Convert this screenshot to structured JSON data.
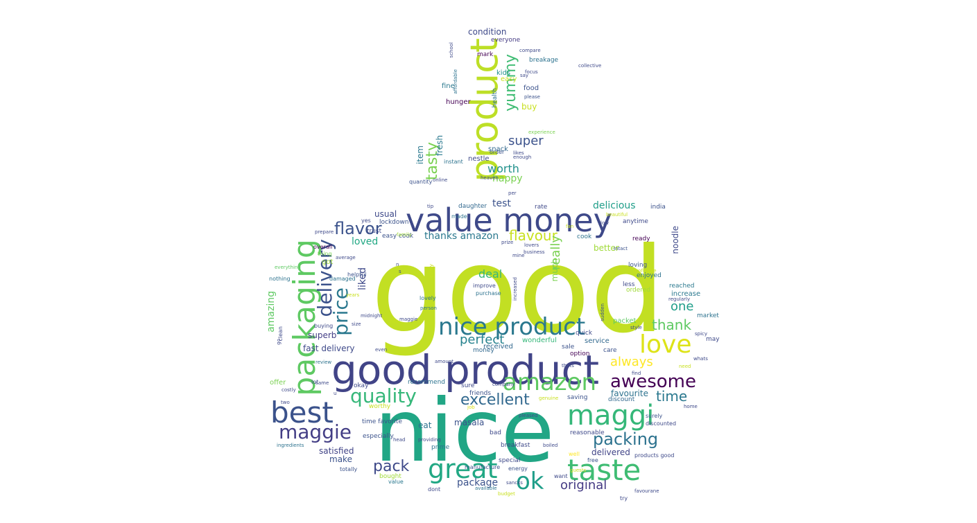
{
  "words": [
    {
      "text": "good",
      "color": "#c2df23"
    },
    {
      "text": "nice",
      "color": "#21a685"
    },
    {
      "text": "value money",
      "color": "#3e4989"
    },
    {
      "text": "good product",
      "color": "#414487"
    },
    {
      "text": "product",
      "color": "#bddf26"
    },
    {
      "text": "taste",
      "color": "#3fbc73"
    },
    {
      "text": "packaging",
      "color": "#5ec962"
    },
    {
      "text": "nice product",
      "color": "#2a788e"
    },
    {
      "text": "best",
      "color": "#3b528b"
    },
    {
      "text": "maggi",
      "color": "#35b779"
    },
    {
      "text": "amazon",
      "color": "#5ec962"
    },
    {
      "text": "love",
      "color": "#dde318"
    },
    {
      "text": "great",
      "color": "#22a884"
    },
    {
      "text": "ok",
      "color": "#1f9e89"
    },
    {
      "text": "maggie",
      "color": "#433e85"
    },
    {
      "text": "quality",
      "color": "#35b779"
    },
    {
      "text": "delivery",
      "color": "#3b528b"
    },
    {
      "text": "price",
      "color": "#2a788e"
    },
    {
      "text": "awesome",
      "color": "#440154"
    },
    {
      "text": "excellent",
      "color": "#31688e"
    },
    {
      "text": "flavor",
      "color": "#3b528b"
    },
    {
      "text": "flavour",
      "color": "#c8e020"
    },
    {
      "text": "yummy",
      "color": "#3fbc73"
    },
    {
      "text": "tasty",
      "color": "#7ad151"
    },
    {
      "text": "packing",
      "color": "#2c728e"
    },
    {
      "text": "pack",
      "color": "#3e4989"
    },
    {
      "text": "thank",
      "color": "#5ec962"
    },
    {
      "text": "time",
      "color": "#2a788e"
    },
    {
      "text": "perfect",
      "color": "#26828e"
    },
    {
      "text": "really",
      "color": "#7ad151"
    },
    {
      "text": "always",
      "color": "#fde725"
    },
    {
      "text": "super",
      "color": "#3b528b"
    },
    {
      "text": "worth",
      "color": "#21918c"
    },
    {
      "text": "original",
      "color": "#443a83"
    },
    {
      "text": "one",
      "color": "#1f9e89"
    },
    {
      "text": "deal",
      "color": "#35b779"
    },
    {
      "text": "thanks amazon",
      "color": "#2a788e"
    },
    {
      "text": "happy",
      "color": "#7ad151"
    },
    {
      "text": "delicious",
      "color": "#1f9e89"
    },
    {
      "text": "amazing",
      "color": "#5ec962"
    },
    {
      "text": "package",
      "color": "#3b528b"
    },
    {
      "text": "delivered",
      "color": "#414487"
    },
    {
      "text": "satisfied",
      "color": "#414487"
    },
    {
      "text": "condition",
      "color": "#3e4989"
    },
    {
      "text": "test",
      "color": "#3b528b"
    },
    {
      "text": "buy",
      "color": "#c8e020"
    },
    {
      "text": "loved",
      "color": "#22a884"
    },
    {
      "text": "liked",
      "color": "#3e4989"
    },
    {
      "text": "superb",
      "color": "#433e85"
    },
    {
      "text": "fast delivery",
      "color": "#3e4989"
    },
    {
      "text": "favourite",
      "color": "#2c728e"
    },
    {
      "text": "item",
      "color": "#2a788e"
    },
    {
      "text": "fresh",
      "color": "#2a788e"
    },
    {
      "text": "better",
      "color": "#a0da39"
    },
    {
      "text": "much",
      "color": "#7ad151"
    },
    {
      "text": "usual",
      "color": "#3e4989"
    },
    {
      "text": "masala",
      "color": "#3b528b"
    },
    {
      "text": "eat",
      "color": "#2c728e"
    },
    {
      "text": "make",
      "color": "#3b528b"
    },
    {
      "text": "noodle",
      "color": "#3e4989"
    },
    {
      "text": "packet",
      "color": "#5ec962"
    },
    {
      "text": "service",
      "color": "#31688e"
    },
    {
      "text": "wonderful",
      "color": "#35b779"
    },
    {
      "text": "received",
      "color": "#31688e"
    },
    {
      "text": "offer",
      "color": "#7ad151"
    },
    {
      "text": "got",
      "color": "#a0da39"
    },
    {
      "text": "hunger",
      "color": "#440154"
    },
    {
      "text": "fine",
      "color": "#2a788e"
    },
    {
      "text": "kids",
      "color": "#21918c"
    },
    {
      "text": "easy",
      "color": "#c8e020"
    },
    {
      "text": "food",
      "color": "#3b528b"
    },
    {
      "text": "health",
      "color": "#2c728e"
    },
    {
      "text": "snack",
      "color": "#31688e"
    },
    {
      "text": "nestle",
      "color": "#3e4989"
    },
    {
      "text": "everyone",
      "color": "#443a83"
    },
    {
      "text": "breakage",
      "color": "#2c728e"
    },
    {
      "text": "mark",
      "color": "#440154"
    },
    {
      "text": "trust",
      "color": "#3e4989"
    },
    {
      "text": "lockdown",
      "color": "#3b528b"
    },
    {
      "text": "easy cook",
      "color": "#3b528b"
    },
    {
      "text": "daughter",
      "color": "#31688e"
    },
    {
      "text": "rate",
      "color": "#3e4989"
    },
    {
      "text": "india",
      "color": "#3b528b"
    },
    {
      "text": "anytime",
      "color": "#3e4989"
    },
    {
      "text": "cook",
      "color": "#2c728e"
    },
    {
      "text": "ready",
      "color": "#440154"
    },
    {
      "text": "loving",
      "color": "#3b528b"
    },
    {
      "text": "enjoyed",
      "color": "#2c728e"
    },
    {
      "text": "less",
      "color": "#3e4989"
    },
    {
      "text": "ordered",
      "color": "#a0da39"
    },
    {
      "text": "reached",
      "color": "#2a788e"
    },
    {
      "text": "increase",
      "color": "#2a788e"
    },
    {
      "text": "market",
      "color": "#2c728e"
    },
    {
      "text": "may",
      "color": "#3e4989"
    },
    {
      "text": "quick",
      "color": "#3e4989"
    },
    {
      "text": "care",
      "color": "#3b528b"
    },
    {
      "text": "option",
      "color": "#440154"
    },
    {
      "text": "sale",
      "color": "#3b528b"
    },
    {
      "text": "money",
      "color": "#31688e"
    },
    {
      "text": "sure",
      "color": "#3e4989"
    },
    {
      "text": "okay",
      "color": "#3e4989"
    },
    {
      "text": "recommend",
      "color": "#2c728e"
    },
    {
      "text": "friends",
      "color": "#3b528b"
    },
    {
      "text": "saving",
      "color": "#3b528b"
    },
    {
      "text": "discount",
      "color": "#31688e"
    },
    {
      "text": "worthy",
      "color": "#c8e020"
    },
    {
      "text": "time favorite",
      "color": "#3b528b"
    },
    {
      "text": "especially",
      "color": "#3b528b"
    },
    {
      "text": "bad",
      "color": "#3e4989"
    },
    {
      "text": "reasonable",
      "color": "#3e4989"
    },
    {
      "text": "breakfast",
      "color": "#3e4989"
    },
    {
      "text": "prime",
      "color": "#2c728e"
    },
    {
      "text": "special",
      "color": "#3e4989"
    },
    {
      "text": "well",
      "color": "#fde725"
    },
    {
      "text": "free",
      "color": "#3b528b"
    },
    {
      "text": "products good",
      "color": "#3e4989"
    },
    {
      "text": "totally",
      "color": "#3b528b"
    },
    {
      "text": "bought",
      "color": "#a0da39"
    },
    {
      "text": "value",
      "color": "#2a788e"
    },
    {
      "text": "manufacture",
      "color": "#3b528b"
    },
    {
      "text": "dont",
      "color": "#3e4989"
    },
    {
      "text": "want",
      "color": "#3e4989"
    },
    {
      "text": "energy",
      "color": "#3b528b"
    },
    {
      "text": "try",
      "color": "#3e4989"
    },
    {
      "text": "surely",
      "color": "#3b528b"
    },
    {
      "text": "discounted",
      "color": "#3e4989"
    },
    {
      "text": "lovely",
      "color": "#2c728e"
    },
    {
      "text": "improve",
      "color": "#3e4989"
    },
    {
      "text": "purchase",
      "color": "#2c728e"
    },
    {
      "text": "nothing",
      "color": "#2c728e"
    },
    {
      "text": "clean",
      "color": "#3e4989"
    },
    {
      "text": "buying",
      "color": "#3e4989"
    },
    {
      "text": "damaged",
      "color": "#2c728e"
    },
    {
      "text": "helpful",
      "color": "#3b528b"
    },
    {
      "text": "overall",
      "color": "#440154"
    },
    {
      "text": "thing",
      "color": "#7ad151"
    },
    {
      "text": "quantity",
      "color": "#3b528b"
    },
    {
      "text": "instant",
      "color": "#2c728e"
    },
    {
      "text": "order",
      "color": "#3b528b"
    },
    {
      "text": "say",
      "color": "#3e4989"
    },
    {
      "text": "please",
      "color": "#3b528b"
    },
    {
      "text": "experience",
      "color": "#7ad151"
    },
    {
      "text": "made",
      "color": "#2c728e"
    },
    {
      "text": "online",
      "color": "#3e4989"
    },
    {
      "text": "yes",
      "color": "#3e4989"
    },
    {
      "text": "per",
      "color": "#3e4989"
    },
    {
      "text": "fan",
      "color": "#c8e020"
    },
    {
      "text": "intact",
      "color": "#3b528b"
    },
    {
      "text": "low",
      "color": "#3e4989"
    },
    {
      "text": "lovers",
      "color": "#3e4989"
    },
    {
      "text": "prize",
      "color": "#3e4989"
    },
    {
      "text": "sudden",
      "color": "#3b528b"
    },
    {
      "text": "midnight",
      "color": "#3e4989"
    },
    {
      "text": "size",
      "color": "#3e4989"
    },
    {
      "text": "lot",
      "color": "#3e4989"
    },
    {
      "text": "costly",
      "color": "#3e4989"
    },
    {
      "text": "go",
      "color": "#3e4989"
    },
    {
      "text": "review",
      "color": "#2c728e"
    },
    {
      "text": "person",
      "color": "#2c728e"
    },
    {
      "text": "amount",
      "color": "#3e4989"
    },
    {
      "text": "maggie",
      "color": "#3e4989"
    },
    {
      "text": "came",
      "color": "#3e4989"
    },
    {
      "text": "even",
      "color": "#3e4989"
    },
    {
      "text": "job",
      "color": "#dde318"
    },
    {
      "text": "thats",
      "color": "#3e4989"
    },
    {
      "text": "find",
      "color": "#3e4989"
    },
    {
      "text": "need",
      "color": "#c8e020"
    },
    {
      "text": "whats",
      "color": "#3e4989"
    },
    {
      "text": "home",
      "color": "#3e4989"
    },
    {
      "text": "genuine",
      "color": "#c8e020"
    },
    {
      "text": "boiled",
      "color": "#3e4989"
    },
    {
      "text": "school",
      "color": "#3e4989"
    },
    {
      "text": "affordable",
      "color": "#2c728e"
    },
    {
      "text": "increased",
      "color": "#3e4989"
    },
    {
      "text": "every",
      "color": "#c8e020"
    },
    {
      "text": "family",
      "color": "#a0da39"
    },
    {
      "text": "available",
      "color": "#2c728e"
    },
    {
      "text": "everything",
      "color": "#5ec962"
    },
    {
      "text": "u",
      "color": "#3e4989"
    },
    {
      "text": "n",
      "color": "#3e4989"
    },
    {
      "text": "s",
      "color": "#3e4989"
    },
    {
      "text": "ingredients",
      "color": "#2c728e"
    },
    {
      "text": "providing",
      "color": "#3e4989"
    },
    {
      "text": "compare",
      "color": "#3e4989"
    },
    {
      "text": "focus",
      "color": "#3e4989"
    },
    {
      "text": "collective",
      "color": "#3e4989"
    },
    {
      "text": "beautiful",
      "color": "#c8e020"
    },
    {
      "text": "spicy",
      "color": "#3e4989"
    },
    {
      "text": "mine",
      "color": "#3e4989"
    },
    {
      "text": "business",
      "color": "#3e4989"
    },
    {
      "text": "profitable",
      "color": "#c8e020"
    },
    {
      "text": "heaven",
      "color": "#3e4989"
    },
    {
      "text": "tip",
      "color": "#3e4989"
    },
    {
      "text": "prepare",
      "color": "#3e4989"
    },
    {
      "text": "average",
      "color": "#3e4989"
    },
    {
      "text": "head",
      "color": "#3e4989"
    },
    {
      "text": "pleased",
      "color": "#3e4989"
    },
    {
      "text": "company",
      "color": "#3e4989"
    },
    {
      "text": "guests",
      "color": "#c8e020"
    },
    {
      "text": "sancks",
      "color": "#3e4989"
    },
    {
      "text": "style",
      "color": "#3e4989"
    },
    {
      "text": "budget",
      "color": "#c8e020"
    },
    {
      "text": "favourane",
      "color": "#3e4989"
    },
    {
      "text": "regularly",
      "color": "#3e4989"
    },
    {
      "text": "enough",
      "color": "#3e4989"
    },
    {
      "text": "likes",
      "color": "#3e4989"
    },
    {
      "text": "hot",
      "color": "#c8e020"
    },
    {
      "text": "two",
      "color": "#3e4989"
    },
    {
      "text": "years",
      "color": "#c8e020"
    },
    {
      "text": "making",
      "color": "#c8e020"
    },
    {
      "text": "safe",
      "color": "#c8e020"
    },
    {
      "text": "harmful",
      "color": "#c8e020"
    },
    {
      "text": "use",
      "color": "#3e4989"
    },
    {
      "text": "enjoy",
      "color": "#3e4989"
    }
  ]
}
